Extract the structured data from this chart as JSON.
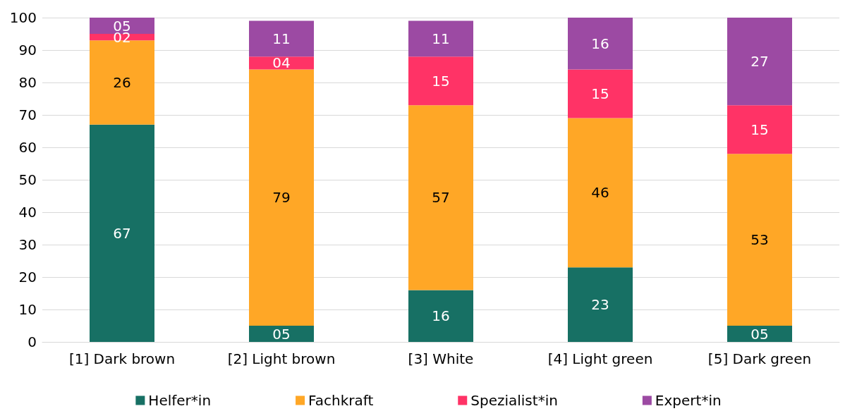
{
  "chart_data": {
    "type": "bar",
    "stacked": true,
    "categories": [
      "[1] Dark brown",
      "[2] Light brown",
      "[3] White",
      "[4] Light green",
      "[5] Dark green"
    ],
    "series": [
      {
        "name": "Helfer*in",
        "color": "#177064",
        "values": [
          67,
          5,
          16,
          23,
          5
        ],
        "value_labels": [
          "67",
          "05",
          "16",
          "23",
          "05"
        ]
      },
      {
        "name": "Fachkraft",
        "color": "#ffa726",
        "values": [
          26,
          79,
          57,
          46,
          53
        ],
        "value_labels": [
          "26",
          "79",
          "57",
          "46",
          "53"
        ]
      },
      {
        "name": "Spezialist*in",
        "color": "#ff3366",
        "values": [
          2,
          4,
          15,
          15,
          15
        ],
        "value_labels": [
          "02",
          "04",
          "15",
          "15",
          "15"
        ]
      },
      {
        "name": "Expert*in",
        "color": "#9c4aa3",
        "values": [
          5,
          11,
          11,
          16,
          27
        ],
        "value_labels": [
          "05",
          "11",
          "11",
          "16",
          "27"
        ]
      }
    ],
    "ylim": [
      0,
      100
    ],
    "yticks": [
      0,
      10,
      20,
      30,
      40,
      50,
      60,
      70,
      80,
      90,
      100
    ],
    "grid": "y",
    "legend": "bottom"
  }
}
